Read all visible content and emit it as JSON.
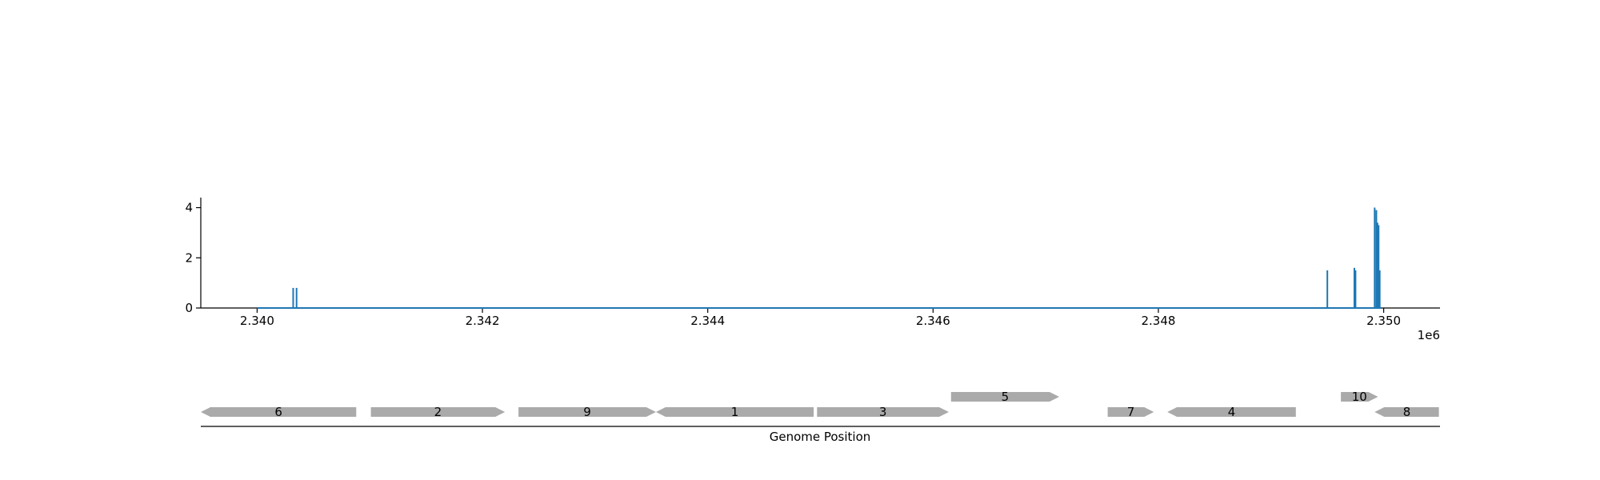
{
  "chart_data": [
    {
      "type": "line",
      "title": "",
      "xlabel": "",
      "ylabel": "",
      "x_offset_label": "1e6",
      "xlim": [
        2339500,
        2350500
      ],
      "ylim": [
        0,
        4.4
      ],
      "xticks": [
        2340000,
        2342000,
        2344000,
        2346000,
        2348000,
        2350000
      ],
      "xtick_labels": [
        "2.340",
        "2.342",
        "2.344",
        "2.346",
        "2.348",
        "2.350"
      ],
      "yticks": [
        0,
        2,
        4
      ],
      "ytick_labels": [
        "0",
        "2",
        "4"
      ],
      "grid": false,
      "color": "#1f77b4",
      "series": [
        {
          "x_start": 2340000,
          "x_end": 2349980,
          "baseline": 0,
          "spikes": [
            {
              "x": 2340320,
              "y": 0.8
            },
            {
              "x": 2340350,
              "y": 0.8
            },
            {
              "x": 2349500,
              "y": 1.5
            },
            {
              "x": 2349740,
              "y": 1.6
            },
            {
              "x": 2349750,
              "y": 1.5
            },
            {
              "x": 2349920,
              "y": 4.0
            },
            {
              "x": 2349935,
              "y": 3.9
            },
            {
              "x": 2349945,
              "y": 3.4
            },
            {
              "x": 2349955,
              "y": 3.3
            },
            {
              "x": 2349965,
              "y": 1.5
            }
          ]
        }
      ]
    },
    {
      "type": "gene-track",
      "xlabel": "Genome Position",
      "xlim": [
        2339500,
        2350500
      ],
      "color": "#aaaaaa",
      "genes": [
        {
          "label": "6",
          "start": 2339500,
          "end": 2340880,
          "strand": "-",
          "row": 0
        },
        {
          "label": "2",
          "start": 2341010,
          "end": 2342200,
          "strand": "+",
          "row": 0
        },
        {
          "label": "9",
          "start": 2342320,
          "end": 2343540,
          "strand": "+",
          "row": 0
        },
        {
          "label": "1",
          "start": 2343540,
          "end": 2344940,
          "strand": "-",
          "row": 0
        },
        {
          "label": "3",
          "start": 2344970,
          "end": 2346140,
          "strand": "+",
          "row": 0
        },
        {
          "label": "5",
          "start": 2346160,
          "end": 2347120,
          "strand": "+",
          "row": 1
        },
        {
          "label": "7",
          "start": 2347550,
          "end": 2347960,
          "strand": "+",
          "row": 0
        },
        {
          "label": "4",
          "start": 2348080,
          "end": 2349220,
          "strand": "-",
          "row": 0
        },
        {
          "label": "10",
          "start": 2349620,
          "end": 2349950,
          "strand": "+",
          "row": 1
        },
        {
          "label": "8",
          "start": 2349920,
          "end": 2350490,
          "strand": "-",
          "row": 0
        }
      ]
    }
  ]
}
